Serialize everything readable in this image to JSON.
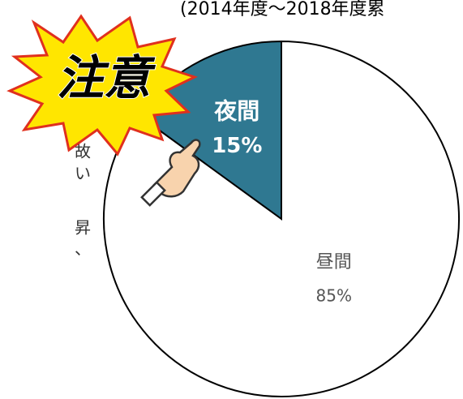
{
  "chart_data": {
    "type": "pie",
    "subtitle": "(2014年度〜2018年度累",
    "categories": [
      "夜間",
      "昼間"
    ],
    "values": [
      15,
      85
    ],
    "value_labels": [
      "15%",
      "85%"
    ],
    "colors": [
      "#2f7891",
      "#ffffff"
    ],
    "label_colors": [
      "#ffffff",
      "#555555"
    ],
    "badge": "注意",
    "side_text": [
      "故",
      "い",
      "昇",
      "、"
    ]
  }
}
